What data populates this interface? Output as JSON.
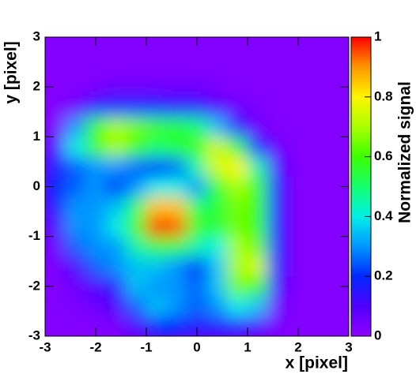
{
  "chart_data": {
    "type": "heatmap",
    "xlabel": "x [pixel]",
    "ylabel": "y [pixel]",
    "colorbar_label": "Normalized signal",
    "x": [
      -2.8,
      -2.4,
      -2.0,
      -1.6,
      -1.2,
      -0.8,
      -0.4,
      0,
      0.4,
      0.8,
      1.2,
      1.6,
      2.0,
      2.4,
      2.8
    ],
    "y": [
      -2.8,
      -2.4,
      -2.0,
      -1.6,
      -1.2,
      -0.8,
      -0.4,
      0,
      0.4,
      0.8,
      1.2,
      1.6,
      2.0,
      2.4,
      2.8
    ],
    "z": [
      [
        0.02,
        0.02,
        0.02,
        0.03,
        0.1,
        0.2,
        0.2,
        0.15,
        0.15,
        0.15,
        0.1,
        0.03,
        0.02,
        0.02,
        0.02
      ],
      [
        0.02,
        0.03,
        0.05,
        0.1,
        0.25,
        0.35,
        0.3,
        0.25,
        0.3,
        0.4,
        0.35,
        0.05,
        0.02,
        0.02,
        0.02
      ],
      [
        0.02,
        0.05,
        0.1,
        0.15,
        0.35,
        0.3,
        0.3,
        0.25,
        0.35,
        0.65,
        0.6,
        0.1,
        0.02,
        0.02,
        0.02
      ],
      [
        0.03,
        0.1,
        0.25,
        0.3,
        0.35,
        0.35,
        0.3,
        0.2,
        0.35,
        0.7,
        0.75,
        0.15,
        0.02,
        0.02,
        0.02
      ],
      [
        0.05,
        0.25,
        0.3,
        0.3,
        0.45,
        0.55,
        0.55,
        0.45,
        0.4,
        0.7,
        0.65,
        0.15,
        0.02,
        0.02,
        0.02
      ],
      [
        0.1,
        0.3,
        0.3,
        0.4,
        0.6,
        1,
        0.95,
        0.6,
        0.55,
        0.65,
        0.6,
        0.15,
        0.02,
        0.02,
        0.02
      ],
      [
        0.15,
        0.3,
        0.3,
        0.35,
        0.5,
        0.85,
        0.85,
        0.5,
        0.55,
        0.65,
        0.6,
        0.15,
        0.02,
        0.02,
        0.02
      ],
      [
        0.2,
        0.25,
        0.3,
        0.2,
        0.3,
        0.4,
        0.4,
        0.3,
        0.55,
        0.7,
        0.6,
        0.15,
        0.02,
        0.02,
        0.02
      ],
      [
        0.15,
        0.25,
        0.3,
        0.3,
        0.25,
        0.2,
        0.25,
        0.45,
        0.75,
        0.8,
        0.45,
        0.1,
        0.02,
        0.02,
        0.02
      ],
      [
        0.1,
        0.4,
        0.6,
        0.7,
        0.6,
        0.5,
        0.55,
        0.6,
        0.75,
        0.55,
        0.2,
        0.05,
        0.02,
        0.02,
        0.02
      ],
      [
        0.03,
        0.3,
        0.6,
        0.7,
        0.65,
        0.6,
        0.55,
        0.5,
        0.35,
        0.15,
        0.05,
        0.02,
        0.02,
        0.02,
        0.02
      ],
      [
        0.02,
        0.05,
        0.15,
        0.2,
        0.2,
        0.18,
        0.15,
        0.15,
        0.1,
        0.05,
        0.03,
        0.02,
        0.02,
        0.02,
        0.02
      ],
      [
        0.02,
        0.02,
        0.03,
        0.05,
        0.05,
        0.05,
        0.05,
        0.05,
        0.03,
        0.02,
        0.02,
        0.02,
        0.02,
        0.02,
        0.02
      ],
      [
        0.02,
        0.02,
        0.02,
        0.02,
        0.02,
        0.02,
        0.02,
        0.02,
        0.02,
        0.02,
        0.02,
        0.02,
        0.02,
        0.02,
        0.02
      ],
      [
        0.02,
        0.02,
        0.02,
        0.02,
        0.02,
        0.02,
        0.02,
        0.02,
        0.02,
        0.02,
        0.02,
        0.02,
        0.02,
        0.02,
        0.02
      ]
    ],
    "xlim": [
      -3,
      3
    ],
    "ylim": [
      -3,
      3
    ],
    "zlim": [
      0,
      1
    ],
    "xticks": [
      -3,
      -2,
      -1,
      0,
      1,
      2,
      3
    ],
    "yticks": [
      -3,
      -2,
      -1,
      0,
      1,
      2,
      3
    ],
    "zticks": [
      0,
      0.2,
      0.4,
      0.6,
      0.8,
      1
    ]
  }
}
